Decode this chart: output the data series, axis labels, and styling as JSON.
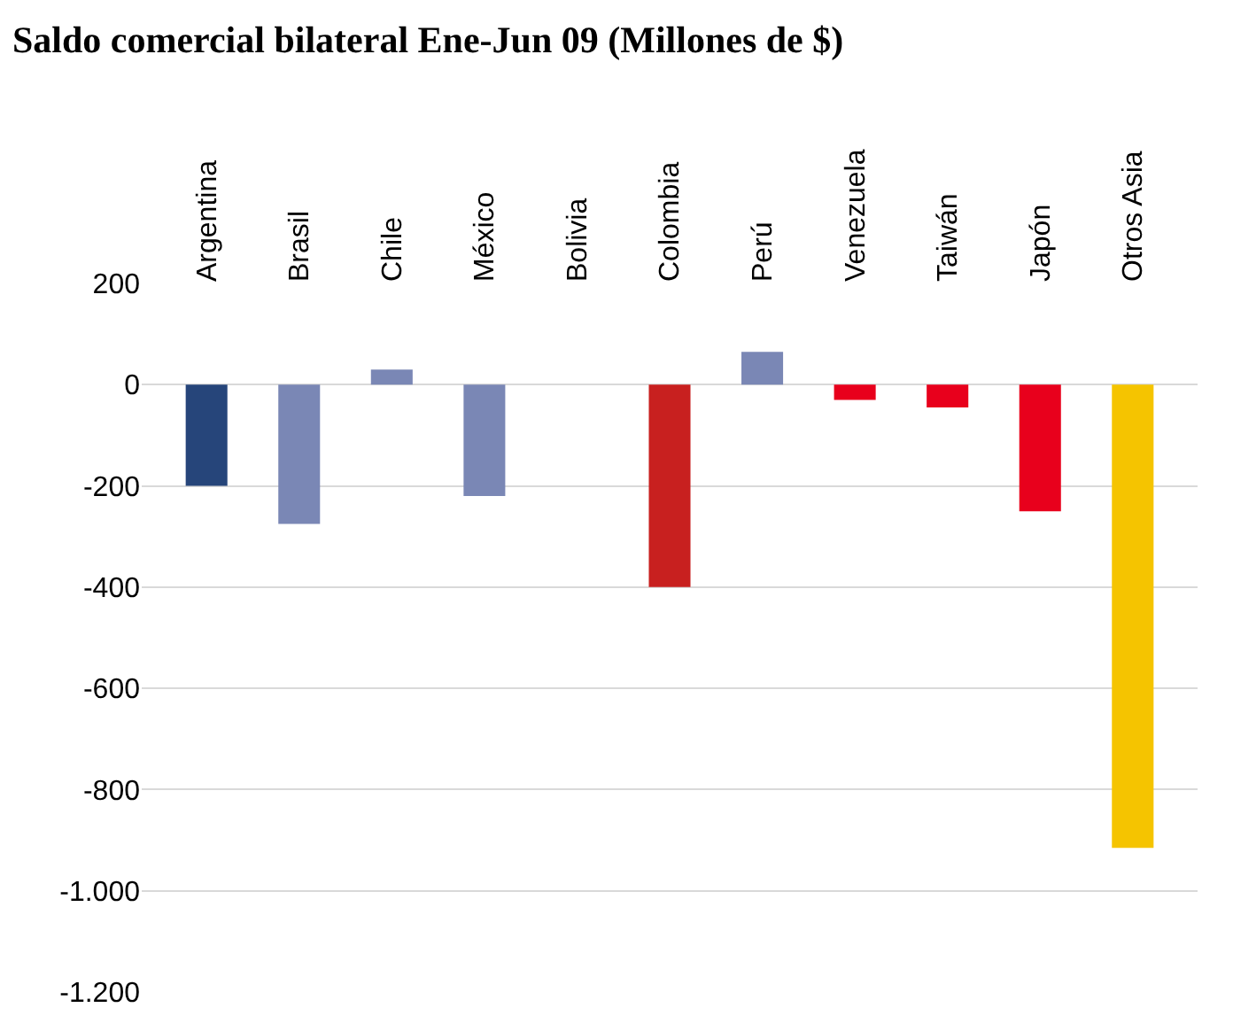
{
  "chart_data": {
    "type": "bar",
    "title": "Saldo comercial bilateral Ene-Jun 09 (Millones de $)",
    "categories": [
      "Argentina",
      "Brasil",
      "Chile",
      "México",
      "Bolivia",
      "Colombia",
      "Perú",
      "Venezuela",
      "Taiwán",
      "Japón",
      "Otros Asia"
    ],
    "values": [
      -200,
      -275,
      30,
      -220,
      null,
      -400,
      65,
      -30,
      -45,
      -250,
      -915
    ],
    "colors": [
      "#26457a",
      "#7a87b5",
      "#7a87b5",
      "#7a87b5",
      "#7a87b5",
      "#c8201f",
      "#7a87b5",
      "#e8001c",
      "#e8001c",
      "#e8001c",
      "#f5c400"
    ],
    "ylim": [
      -1200,
      200
    ],
    "yticks": [
      {
        "value": -1200,
        "label": "-1.200"
      },
      {
        "value": -1000,
        "label": "-1.000"
      },
      -800,
      -600,
      -400,
      -200,
      0,
      200
    ],
    "grid": "y"
  }
}
